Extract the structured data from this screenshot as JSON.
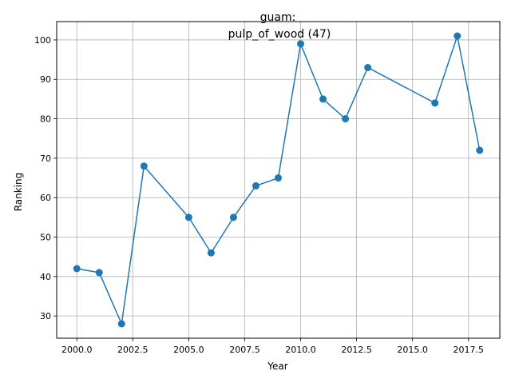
{
  "chart_data": {
    "type": "line",
    "title_line1": "guam:",
    "title_line2": "pulp_of_wood (47)",
    "xlabel": "Year",
    "ylabel": "Ranking",
    "xlim": [
      1999.1,
      2018.9
    ],
    "ylim": [
      24.35,
      104.65
    ],
    "xticks": [
      2000,
      2002.5,
      2005,
      2007.5,
      2010,
      2012.5,
      2015,
      2017.5
    ],
    "xtick_labels": [
      "2000.0",
      "2002.5",
      "2005.0",
      "2007.5",
      "2010.0",
      "2012.5",
      "2015.0",
      "2017.5"
    ],
    "yticks": [
      30,
      40,
      50,
      60,
      70,
      80,
      90,
      100
    ],
    "ytick_labels": [
      "30",
      "40",
      "50",
      "60",
      "70",
      "80",
      "90",
      "100"
    ],
    "grid": true,
    "series": [
      {
        "color": "#1f77b4",
        "marker": "circle",
        "x": [
          2000,
          2001,
          2002,
          2003,
          2005,
          2006,
          2007,
          2008,
          2009,
          2010,
          2011,
          2012,
          2013,
          2016,
          2017,
          2018
        ],
        "y": [
          42,
          41,
          28,
          68,
          55,
          46,
          55,
          63,
          65,
          99,
          85,
          80,
          93,
          84,
          101,
          72
        ]
      }
    ]
  }
}
